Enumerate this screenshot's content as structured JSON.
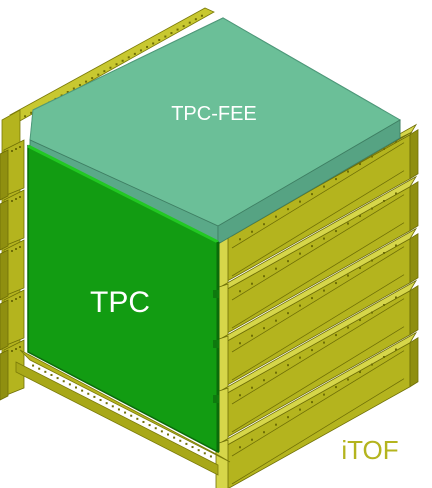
{
  "labels": {
    "top": "TPC-FEE",
    "front": "TPC",
    "side": "iTOF"
  },
  "colors": {
    "tpc_fee_top": "#6bbf98",
    "tpc_fee_edge": "#4f9a7b",
    "tpc_front": "#129c12",
    "tpc_front_edge": "#0b6b0b",
    "itof_panel": "#b4b41e",
    "itof_shadow": "#8f8f10",
    "itof_highlight": "#d6d64a",
    "itof_label": "#b4b41e"
  },
  "components": [
    "tpc-fee-board",
    "tpc-body",
    "itof-panels"
  ]
}
